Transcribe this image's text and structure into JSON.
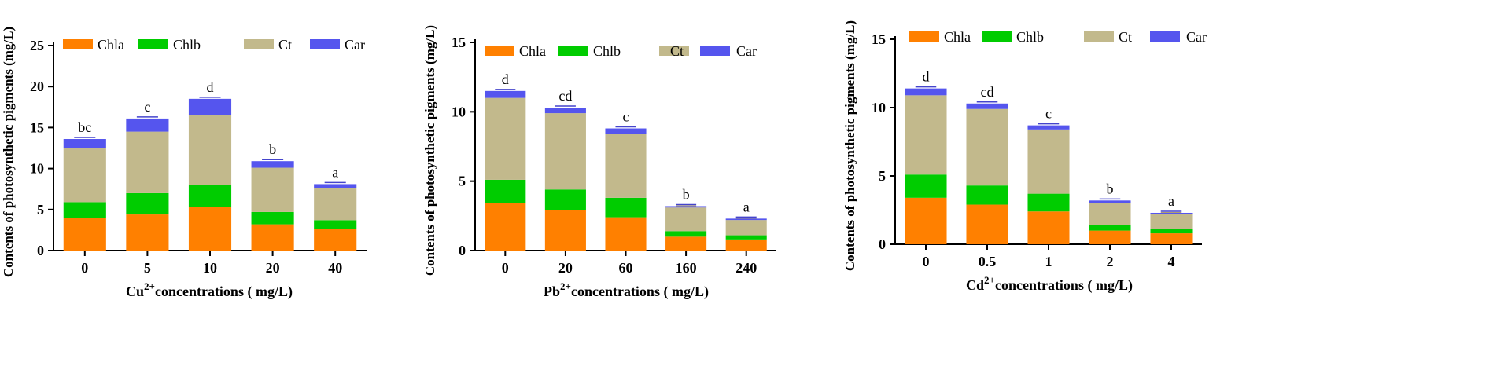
{
  "colors": {
    "Chla": "#ff8000",
    "Chlb": "#00cc00",
    "Ct": "#c2b98c",
    "Car": "#5555ee"
  },
  "chart_data": [
    {
      "type": "bar",
      "stacked": true,
      "ylabel": "Contents of photosynthetic pigments (mg/L)",
      "xlabel": {
        "ion": "Cu",
        "sup": "2+",
        "rest": "concentrations ( mg/L)"
      },
      "categories": [
        "0",
        "5",
        "10",
        "20",
        "40"
      ],
      "ylim": [
        0,
        25
      ],
      "yticks": [
        0,
        5,
        10,
        15,
        20,
        25
      ],
      "ytick_labels": [
        "0",
        "5",
        "10",
        "15",
        "20",
        "25"
      ],
      "legend": [
        "Chla",
        "Chlb",
        "Ct",
        "Car"
      ],
      "series": [
        {
          "name": "Chla",
          "values": [
            4.0,
            4.4,
            5.3,
            3.2,
            2.6
          ]
        },
        {
          "name": "Chlb",
          "values": [
            1.9,
            2.6,
            2.7,
            1.5,
            1.1
          ]
        },
        {
          "name": "Ct",
          "values": [
            6.6,
            7.5,
            8.5,
            5.4,
            3.9
          ]
        },
        {
          "name": "Car",
          "values": [
            1.1,
            1.6,
            2.0,
            0.8,
            0.5
          ]
        }
      ],
      "significance": [
        "bc",
        "c",
        "d",
        "b",
        "a"
      ]
    },
    {
      "type": "bar",
      "stacked": true,
      "ylabel": "Contents of photosynthetic pigments (mg/L)",
      "xlabel": {
        "ion": "Pb",
        "sup": "2+",
        "rest": "concentrations ( mg/L)"
      },
      "categories": [
        "0",
        "20",
        "60",
        "160",
        "240"
      ],
      "ylim": [
        0,
        15
      ],
      "yticks": [
        0,
        5,
        10,
        15
      ],
      "ytick_labels": [
        "0",
        "5",
        "10",
        "15"
      ],
      "legend": [
        "Chla",
        "Chlb",
        "Ct",
        "Car"
      ],
      "series": [
        {
          "name": "Chla",
          "values": [
            3.4,
            2.9,
            2.4,
            1.0,
            0.8
          ]
        },
        {
          "name": "Chlb",
          "values": [
            1.7,
            1.5,
            1.4,
            0.4,
            0.3
          ]
        },
        {
          "name": "Ct",
          "values": [
            5.9,
            5.5,
            4.6,
            1.7,
            1.1
          ]
        },
        {
          "name": "Car",
          "values": [
            0.5,
            0.4,
            0.4,
            0.1,
            0.1
          ]
        }
      ],
      "significance": [
        "d",
        "cd",
        "c",
        "b",
        "a"
      ]
    },
    {
      "type": "bar",
      "stacked": true,
      "ylabel": "Contents of photosynthetic pigments (mg/L)",
      "xlabel": {
        "ion": "Cd",
        "sup": "2+",
        "rest": "concentrations ( mg/L)"
      },
      "categories": [
        "0",
        "0.5",
        "1",
        "2",
        "4"
      ],
      "ylim": [
        0,
        15
      ],
      "yticks": [
        0,
        5,
        10,
        15
      ],
      "ytick_labels": [
        "0",
        "5",
        "10",
        "15"
      ],
      "legend": [
        "Chla",
        "Chlb",
        "Ct",
        "Car"
      ],
      "series": [
        {
          "name": "Chla",
          "values": [
            3.4,
            2.9,
            2.4,
            1.0,
            0.8
          ]
        },
        {
          "name": "Chlb",
          "values": [
            1.7,
            1.4,
            1.3,
            0.4,
            0.3
          ]
        },
        {
          "name": "Ct",
          "values": [
            5.8,
            5.6,
            4.7,
            1.6,
            1.1
          ]
        },
        {
          "name": "Car",
          "values": [
            0.5,
            0.4,
            0.3,
            0.2,
            0.1
          ]
        }
      ],
      "significance": [
        "d",
        "cd",
        "c",
        "b",
        "a"
      ]
    }
  ]
}
